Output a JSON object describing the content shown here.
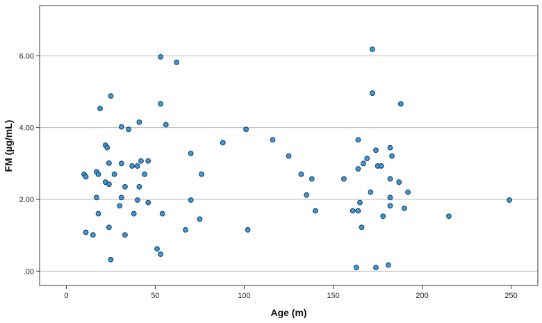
{
  "chart_data": {
    "type": "scatter",
    "xlabel": "Age (m)",
    "ylabel": "FM (µg/mL)",
    "xlim": [
      -15,
      265
    ],
    "ylim": [
      -0.4,
      7.4
    ],
    "x_ticks": [
      0,
      50,
      100,
      150,
      200,
      250
    ],
    "x_tick_labels": [
      "0",
      "50",
      "100",
      "150",
      "200",
      "250"
    ],
    "y_ticks": [
      0,
      2,
      4,
      6
    ],
    "y_tick_labels": [
      ".00",
      "2.00",
      "4.00",
      "6.00"
    ],
    "grid": "horizontal",
    "colors": {
      "point_fill": "#3a9ad9",
      "point_stroke": "#1e3550",
      "gridline": "#b9b9b9"
    },
    "points": [
      [
        10,
        2.7
      ],
      [
        11,
        2.63
      ],
      [
        11,
        1.08
      ],
      [
        15,
        1.01
      ],
      [
        17,
        2.05
      ],
      [
        17,
        2.77
      ],
      [
        18,
        2.7
      ],
      [
        18,
        1.6
      ],
      [
        19,
        4.53
      ],
      [
        22,
        3.51
      ],
      [
        22,
        2.48
      ],
      [
        23,
        3.44
      ],
      [
        24,
        2.42
      ],
      [
        24,
        3.01
      ],
      [
        24,
        1.22
      ],
      [
        25,
        4.88
      ],
      [
        25,
        0.32
      ],
      [
        27,
        2.7
      ],
      [
        30,
        1.82
      ],
      [
        31,
        2.05
      ],
      [
        31,
        3.0
      ],
      [
        31,
        4.02
      ],
      [
        33,
        1.01
      ],
      [
        33,
        2.35
      ],
      [
        35,
        3.95
      ],
      [
        37,
        2.93
      ],
      [
        38,
        1.6
      ],
      [
        40,
        2.93
      ],
      [
        40,
        1.98
      ],
      [
        41,
        4.15
      ],
      [
        41,
        2.35
      ],
      [
        42,
        3.07
      ],
      [
        44,
        2.7
      ],
      [
        46,
        3.07
      ],
      [
        46,
        1.91
      ],
      [
        51,
        0.62
      ],
      [
        53,
        0.47
      ],
      [
        53,
        5.97
      ],
      [
        53,
        4.66
      ],
      [
        54,
        1.6
      ],
      [
        56,
        4.08
      ],
      [
        62,
        5.82
      ],
      [
        67,
        1.15
      ],
      [
        70,
        3.28
      ],
      [
        70,
        1.98
      ],
      [
        75,
        1.45
      ],
      [
        76,
        2.7
      ],
      [
        88,
        3.58
      ],
      [
        101,
        3.95
      ],
      [
        102,
        1.15
      ],
      [
        116,
        3.66
      ],
      [
        125,
        3.21
      ],
      [
        132,
        2.7
      ],
      [
        135,
        2.12
      ],
      [
        138,
        2.57
      ],
      [
        140,
        1.68
      ],
      [
        156,
        2.57
      ],
      [
        161,
        1.68
      ],
      [
        163,
        0.1
      ],
      [
        164,
        3.66
      ],
      [
        164,
        2.85
      ],
      [
        164,
        1.68
      ],
      [
        165,
        1.91
      ],
      [
        166,
        1.22
      ],
      [
        167,
        3.0
      ],
      [
        169,
        3.14
      ],
      [
        171,
        2.2
      ],
      [
        172,
        6.18
      ],
      [
        172,
        4.96
      ],
      [
        174,
        3.37
      ],
      [
        174,
        0.1
      ],
      [
        175,
        2.93
      ],
      [
        177,
        2.93
      ],
      [
        178,
        1.53
      ],
      [
        181,
        0.17
      ],
      [
        182,
        3.44
      ],
      [
        182,
        2.57
      ],
      [
        182,
        2.05
      ],
      [
        182,
        1.82
      ],
      [
        183,
        3.21
      ],
      [
        187,
        2.48
      ],
      [
        188,
        4.66
      ],
      [
        190,
        1.75
      ],
      [
        192,
        2.2
      ],
      [
        215,
        1.53
      ],
      [
        249,
        1.98
      ]
    ]
  }
}
